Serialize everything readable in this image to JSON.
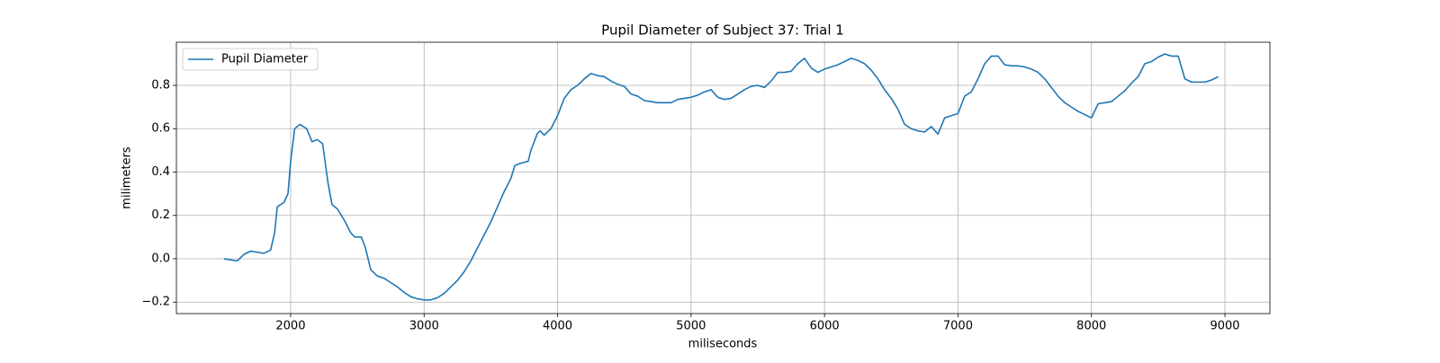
{
  "chart_data": {
    "type": "line",
    "title": "Pupil Diameter of Subject 37: Trial 1",
    "xlabel": "miliseconds",
    "ylabel": "milimeters",
    "x": [
      1500,
      1600,
      1650,
      1700,
      1750,
      1800,
      1850,
      1880,
      1900,
      1950,
      1980,
      2000,
      2030,
      2070,
      2120,
      2160,
      2200,
      2240,
      2280,
      2310,
      2350,
      2400,
      2450,
      2480,
      2530,
      2560,
      2600,
      2650,
      2700,
      2750,
      2800,
      2850,
      2900,
      2950,
      3000,
      3050,
      3100,
      3150,
      3200,
      3250,
      3300,
      3350,
      3400,
      3450,
      3500,
      3550,
      3600,
      3650,
      3680,
      3720,
      3780,
      3800,
      3850,
      3870,
      3900,
      3950,
      4000,
      4050,
      4100,
      4150,
      4200,
      4250,
      4300,
      4350,
      4400,
      4450,
      4500,
      4550,
      4600,
      4650,
      4700,
      4750,
      4800,
      4850,
      4900,
      4950,
      5000,
      5050,
      5100,
      5150,
      5200,
      5250,
      5300,
      5350,
      5400,
      5450,
      5500,
      5550,
      5600,
      5650,
      5700,
      5750,
      5800,
      5850,
      5900,
      5950,
      6000,
      6050,
      6100,
      6150,
      6200,
      6250,
      6300,
      6350,
      6400,
      6450,
      6500,
      6550,
      6600,
      6650,
      6700,
      6750,
      6800,
      6850,
      6900,
      6950,
      7000,
      7050,
      7100,
      7150,
      7200,
      7250,
      7300,
      7350,
      7400,
      7450,
      7500,
      7550,
      7600,
      7650,
      7700,
      7750,
      7800,
      7850,
      7900,
      7950,
      8000,
      8050,
      8100,
      8150,
      8200,
      8250,
      8300,
      8350,
      8400,
      8450,
      8500,
      8550,
      8600,
      8650,
      8700,
      8750,
      8800,
      8850,
      8900,
      8950
    ],
    "series": [
      {
        "name": "Pupil Diameter",
        "color": "#1f77b4",
        "values": [
          0.0,
          -0.01,
          0.02,
          0.035,
          0.03,
          0.025,
          0.04,
          0.12,
          0.24,
          0.26,
          0.3,
          0.45,
          0.6,
          0.62,
          0.6,
          0.54,
          0.55,
          0.53,
          0.35,
          0.25,
          0.23,
          0.18,
          0.12,
          0.1,
          0.1,
          0.05,
          -0.05,
          -0.08,
          -0.09,
          -0.11,
          -0.13,
          -0.155,
          -0.175,
          -0.185,
          -0.19,
          -0.19,
          -0.18,
          -0.16,
          -0.13,
          -0.1,
          -0.06,
          -0.01,
          0.05,
          0.11,
          0.17,
          0.24,
          0.31,
          0.37,
          0.43,
          0.44,
          0.45,
          0.5,
          0.58,
          0.59,
          0.57,
          0.6,
          0.66,
          0.74,
          0.78,
          0.8,
          0.83,
          0.855,
          0.845,
          0.84,
          0.82,
          0.805,
          0.795,
          0.76,
          0.75,
          0.73,
          0.725,
          0.72,
          0.72,
          0.72,
          0.735,
          0.74,
          0.745,
          0.755,
          0.77,
          0.78,
          0.745,
          0.735,
          0.74,
          0.76,
          0.78,
          0.795,
          0.8,
          0.79,
          0.82,
          0.86,
          0.86,
          0.865,
          0.9,
          0.925,
          0.88,
          0.86,
          0.875,
          0.885,
          0.895,
          0.91,
          0.925,
          0.915,
          0.9,
          0.87,
          0.83,
          0.78,
          0.74,
          0.69,
          0.62,
          0.6,
          0.59,
          0.585,
          0.61,
          0.575,
          0.65,
          0.66,
          0.67,
          0.75,
          0.77,
          0.83,
          0.9,
          0.935,
          0.935,
          0.895,
          0.89,
          0.89,
          0.885,
          0.875,
          0.86,
          0.83,
          0.79,
          0.75,
          0.72,
          0.7,
          0.68,
          0.665,
          0.65,
          0.715,
          0.72,
          0.725,
          0.75,
          0.775,
          0.81,
          0.84,
          0.9,
          0.91,
          0.93,
          0.945,
          0.935,
          0.935,
          0.83,
          0.815,
          0.815,
          0.815,
          0.825,
          0.84
        ]
      }
    ],
    "xlim": [
      1144,
      9337
    ],
    "xticks": [
      2000,
      3000,
      4000,
      5000,
      6000,
      7000,
      8000,
      9000
    ],
    "ylim": [
      -0.253,
      0.999
    ],
    "yticks": [
      {
        "value": -0.2,
        "label": "−0.2"
      },
      {
        "value": 0,
        "label": "0.0"
      },
      0.2,
      0.4,
      0.6,
      0.8
    ],
    "grid": true,
    "legend": "upper left"
  }
}
